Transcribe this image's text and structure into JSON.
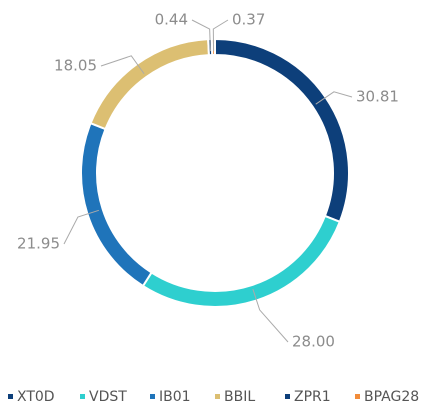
{
  "chart_data": {
    "type": "donut",
    "categories": [
      "XT0D",
      "VDST",
      "IB01",
      "BBIL",
      "ZPR1",
      "BPAG28"
    ],
    "values": [
      30.81,
      28,
      21.95,
      18.05,
      0.44,
      0.37
    ],
    "value_labels": [
      "30.81",
      "28.00",
      "21.95",
      "18.05",
      "0.44",
      "0.37"
    ],
    "colors": [
      "#0d3f7a",
      "#2ecfcf",
      "#1f74ba",
      "#dcbf72",
      "#0d3f7a",
      "#f28c3a"
    ],
    "legend": "bottom"
  }
}
